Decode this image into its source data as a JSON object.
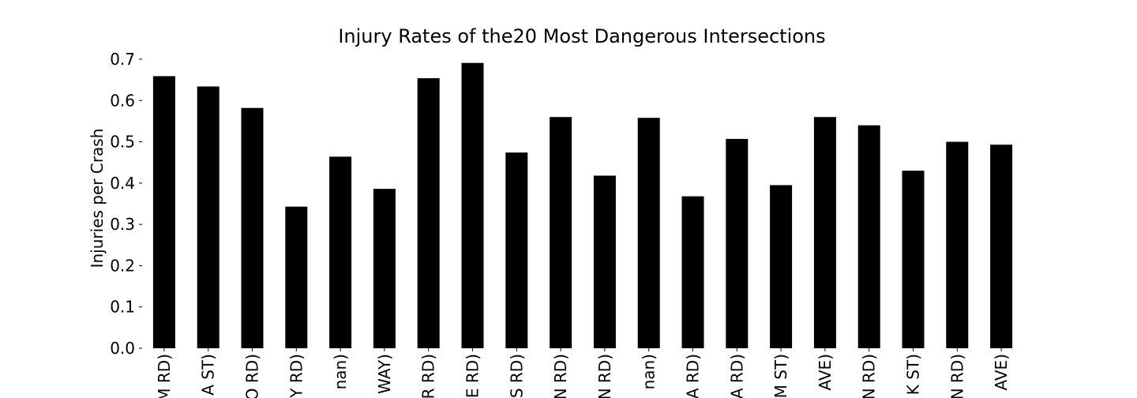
{
  "chart_data": {
    "type": "bar",
    "title": "Injury Rates of the20 Most Dangerous Intersections",
    "xlabel": "",
    "ylabel": "Injuries per Crash",
    "ylim": [
      0,
      0.7
    ],
    "yticks": [
      "0.0",
      "0.1",
      "0.2",
      "0.3",
      "0.4",
      "0.5",
      "0.6",
      "0.7"
    ],
    "categories": [
      "M RD)",
      "A ST)",
      "O RD)",
      "Y RD)",
      "nan)",
      "WAY)",
      "R RD)",
      "E RD)",
      "S RD)",
      "N RD)",
      "N RD)",
      "nan)",
      "A RD)",
      "A RD)",
      "M ST)",
      "AVE)",
      "N RD)",
      "K ST)",
      "N RD)",
      "AVE)"
    ],
    "values": [
      0.659,
      0.634,
      0.582,
      0.343,
      0.464,
      0.386,
      0.654,
      0.691,
      0.474,
      0.56,
      0.418,
      0.558,
      0.368,
      0.507,
      0.395,
      0.56,
      0.54,
      0.43,
      0.5,
      0.493
    ],
    "bar_color": "#000000",
    "grid": false,
    "legend": "none"
  }
}
